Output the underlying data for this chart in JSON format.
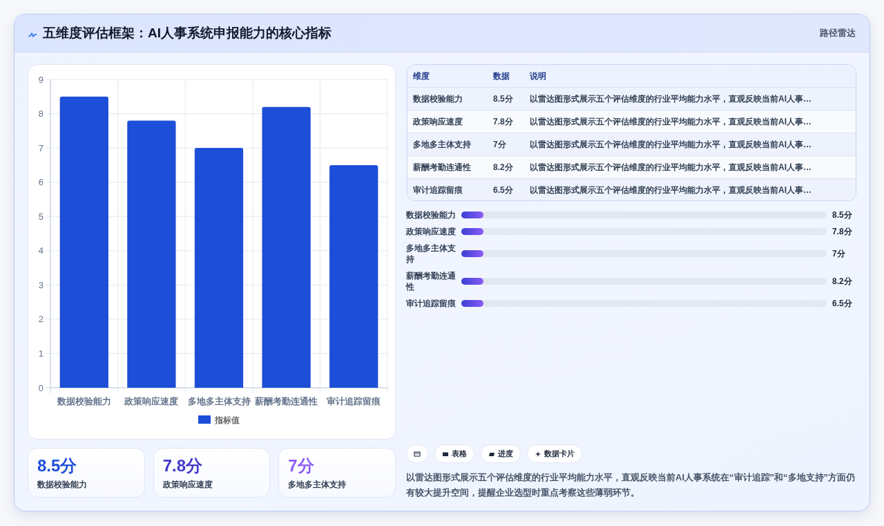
{
  "chart_data": [
    {
      "type": "other",
      "title": "五维度评估框架：AI人事系统申报能力的核心指标",
      "annotations": [
        "路径雷达"
      ]
    },
    {
      "type": "bar",
      "categories": [
        "数据校验能力",
        "政策响应速度",
        "多地多主体支持",
        "薪酬考勤连通性",
        "审计追踪留痕"
      ],
      "series": [
        {
          "name": "指标值",
          "color": "#1d4ed8",
          "values": [
            8.5,
            7.8,
            7,
            8.2,
            6.5
          ]
        }
      ],
      "ylim": [
        0,
        9
      ],
      "yticks": [
        0,
        1,
        2,
        3,
        4,
        5,
        6,
        7,
        8,
        9
      ],
      "grid": true,
      "legend": "bottom"
    },
    {
      "type": "other",
      "annotations": [
        "维度",
        "数据",
        "说明",
        "数据校验能力",
        "8.5分",
        "以雷达图形式展示五个评估维度的行业平均能力水平，直观反映当前AI人事…",
        "政策响应速度",
        "7.8分",
        "以雷达图形式展示五个评估维度的行业平均能力水平，直观反映当前AI人事…",
        "多地多主体支持",
        "7分",
        "以雷达图形式展示五个评估维度的行业平均能力水平，直观反映当前AI人事…",
        "薪酬考勤连通性",
        "8.2分",
        "以雷达图形式展示五个评估维度的行业平均能力水平，直观反映当前AI人事…",
        "审计追踪留痕",
        "6.5分",
        "以雷达图形式展示五个评估维度的行业平均能力水平，直观反映当前AI人事…"
      ]
    },
    {
      "type": "other",
      "annotations": [
        "数据校验能力",
        "8.5分",
        "政策响应速度",
        "7.8分",
        "多地多主体支持",
        "7分",
        "薪酬考勤连通性",
        "8.2分",
        "审计追踪留痕",
        "6.5分"
      ]
    },
    {
      "type": "other",
      "annotations": [
        "8.5分",
        "数据校验能力",
        "7.8分",
        "政策响应速度",
        "7分",
        "多地多主体支持"
      ]
    },
    {
      "type": "other",
      "annotations": [
        "表格",
        "进度",
        "数据卡片",
        "以雷达图形式展示五个评估维度的行业平均能力水平，直观反映当前AI人事系统在“审计追踪”和“多地支持”方面仍有较大提升空间，提醒企业选型时重点考察这些薄弱环节。"
      ]
    }
  ]
}
